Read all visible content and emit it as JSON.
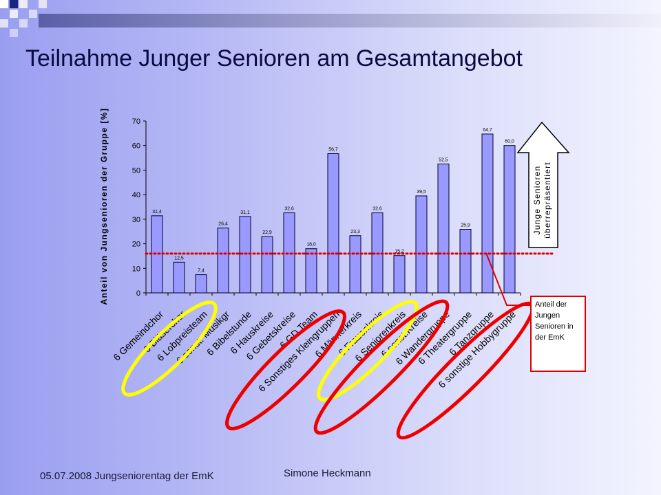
{
  "slide": {
    "title": "Teilnahme Junger Senioren am Gesamtangebot",
    "footer_left": "05.07.2008 Jungseniorentag der EmK",
    "footer_center": "Simone Heckmann"
  },
  "colors": {
    "bar_fill": "#9999ff",
    "bar_stroke": "#000033",
    "highlight_yellow": "#ffff00",
    "highlight_red": "#ee0000",
    "reference_line": "#dd0000"
  },
  "chart_data": {
    "type": "bar",
    "ylabel": "Anteil von Jungsenioren der Gruppe [%]",
    "ylim": [
      0,
      70
    ],
    "yticks": [
      0,
      10,
      20,
      30,
      40,
      50,
      60,
      70
    ],
    "grid": false,
    "categories": [
      "6 Gemeindchor",
      "6 Bläserchor",
      "6 Lobpreisteam",
      "6 sonst. Musikgr",
      "6 Bibelstunde",
      "6 Hauskreise",
      "6 Gebetskreise",
      "6 GD Team",
      "6 Sonstiges Kleingruppen",
      "6 Männerkreis",
      "6 Frauenkreis",
      "6 Seniorenkreis",
      "6 sonst.Kreise",
      "6 Wandergruppe",
      "6 Theatergruppe",
      "6 Tanzgruppe",
      "6 sonstige Hobbygruppe"
    ],
    "values": [
      31.4,
      12.5,
      7.4,
      26.4,
      31.1,
      22.9,
      32.6,
      18.0,
      56.7,
      23.3,
      32.6,
      15.2,
      39.5,
      52.5,
      25.9,
      64.7,
      60.0
    ],
    "value_labels": [
      "31,4",
      "12,5",
      "7,4",
      "26,4",
      "31,1",
      "22,9",
      "32,6",
      "18,0",
      "56,7",
      "23,3",
      "32,6",
      "15,2",
      "39,5",
      "52,5",
      "25,9",
      "64,7",
      "60,0"
    ],
    "reference_line_value": 16,
    "reference_label": "Anteil der Jungen Senioren in der EmK",
    "arrow_label_line1": "Junge Senioren",
    "arrow_label_line2": "überrepräsentiert"
  }
}
